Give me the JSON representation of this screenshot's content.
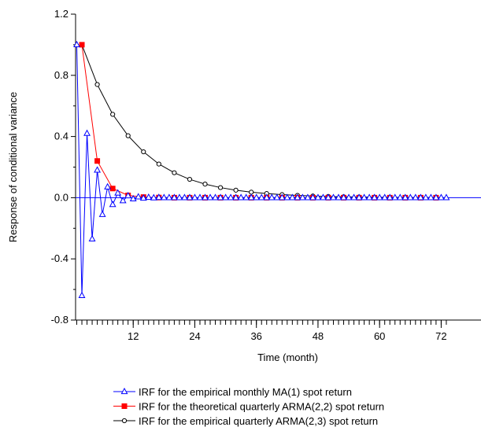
{
  "chart_data": {
    "type": "line",
    "xlabel": "Time (month)",
    "ylabel": "Response of conditional variance",
    "xlim": [
      0,
      73
    ],
    "ylim": [
      -0.8,
      1.2
    ],
    "xticks": [
      12,
      24,
      36,
      48,
      60,
      72
    ],
    "yticks": [
      -0.8,
      -0.4,
      0.0,
      0.4,
      0.8,
      1.2
    ],
    "ytick_labels": [
      "-0.8",
      "-0.4",
      "0.0",
      "0.4",
      "0.8",
      "1.2"
    ],
    "grid": false,
    "legend_position": "bottom",
    "series": [
      {
        "name": "IRF for the empirical monthly MA(1) spot return",
        "color": "#0000ff",
        "marker": "open-triangle",
        "x": [
          1,
          2,
          3,
          4,
          5,
          6,
          7,
          8,
          9,
          10,
          11,
          12,
          13,
          14,
          15,
          16,
          17,
          18,
          19,
          20,
          21,
          22,
          23,
          24,
          25,
          26,
          27,
          28,
          29,
          30,
          31,
          32,
          33,
          34,
          35,
          36,
          37,
          38,
          39,
          40,
          41,
          42,
          43,
          44,
          45,
          46,
          47,
          48,
          49,
          50,
          51,
          52,
          53,
          54,
          55,
          56,
          57,
          58,
          59,
          60,
          61,
          62,
          63,
          64,
          65,
          66,
          67,
          68,
          69,
          70,
          71,
          72,
          73
        ],
        "values": [
          1.0,
          -0.64,
          0.42,
          -0.27,
          0.18,
          -0.11,
          0.07,
          -0.045,
          0.03,
          -0.02,
          0.012,
          -0.008,
          0.005,
          -0.003,
          0.002,
          -0.001,
          0.001,
          0,
          0,
          0,
          0,
          0,
          0,
          0,
          0,
          0,
          0,
          0,
          0,
          0,
          0,
          0,
          0,
          0,
          0,
          0,
          0,
          0,
          0,
          0,
          0,
          0,
          0,
          0,
          0,
          0,
          0,
          0,
          0,
          0,
          0,
          0,
          0,
          0,
          0,
          0,
          0,
          0,
          0,
          0,
          0,
          0,
          0,
          0,
          0,
          0,
          0,
          0,
          0,
          0,
          0,
          0,
          0
        ]
      },
      {
        "name": "IRF for the theoretical quarterly ARMA(2,2) spot return",
        "color": "#ff0000",
        "marker": "filled-square",
        "x": [
          2,
          5,
          8,
          11,
          14,
          17,
          20,
          23,
          26,
          29,
          32,
          35,
          38,
          41,
          44,
          47,
          50,
          53,
          56,
          59,
          62,
          65,
          68,
          71
        ],
        "values": [
          1.0,
          0.24,
          0.06,
          0.015,
          0.004,
          0.001,
          0,
          0,
          0,
          0,
          0,
          0,
          0,
          0,
          0,
          0,
          0,
          0,
          0,
          0,
          0,
          0,
          0,
          0
        ]
      },
      {
        "name": "IRF for the empirical quarterly ARMA(2,3) spot return",
        "color": "#000000",
        "marker": "open-circle",
        "x": [
          2,
          5,
          8,
          11,
          14,
          17,
          20,
          23,
          26,
          29,
          32,
          35,
          38,
          41,
          44,
          47,
          50,
          53,
          56,
          59,
          62,
          65,
          68,
          71
        ],
        "values": [
          1.0,
          0.74,
          0.545,
          0.405,
          0.3,
          0.22,
          0.163,
          0.12,
          0.089,
          0.066,
          0.049,
          0.036,
          0.027,
          0.02,
          0.015,
          0.011,
          0.008,
          0.006,
          0.0045,
          0.0033,
          0.0024,
          0.0018,
          0.0013,
          0.001
        ]
      }
    ]
  }
}
